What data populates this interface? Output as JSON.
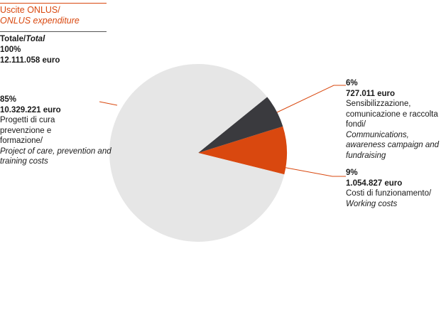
{
  "header": {
    "title_it": "Uscite ONLUS/",
    "title_en": "ONLUS expenditure"
  },
  "total": {
    "label_it": "Totale/",
    "label_en": "Total",
    "percent": "100%",
    "amount": "12.111.058 euro"
  },
  "colors": {
    "accent": "#d9480f",
    "care": "#e6e6e6",
    "communications": "#3a3a3e",
    "working": "#d9480f",
    "leader": "#d9480f"
  },
  "chart_data": {
    "type": "pie",
    "title": "Uscite ONLUS/ONLUS expenditure",
    "slices": [
      {
        "key": "care",
        "value": 10329221,
        "percent_label": "85%",
        "amount_label": "10.329.221 euro",
        "desc_it": "Progetti di cura prevenzione e formazione/",
        "desc_en": "Project of care, prevention and training costs"
      },
      {
        "key": "communications",
        "value": 727011,
        "percent_label": "6%",
        "amount_label": "727.011 euro",
        "desc_it": "Sensibilizzazione, comunicazione e raccolta fondi/",
        "desc_en": "Communications, awareness campaign and fundraising"
      },
      {
        "key": "working",
        "value": 1054827,
        "percent_label": "9%",
        "amount_label": "1.054.827 euro",
        "desc_it": "Costi di funzionamento/",
        "desc_en": "Working costs"
      }
    ]
  }
}
